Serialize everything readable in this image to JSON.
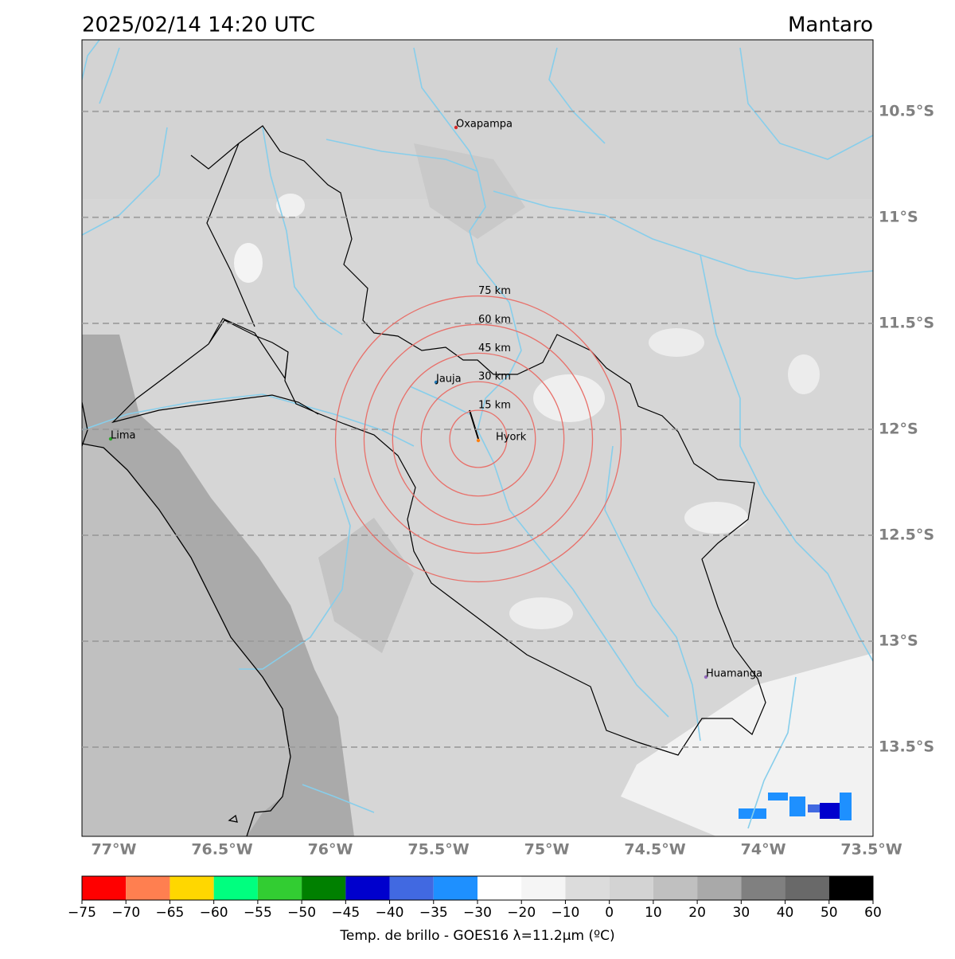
{
  "header": {
    "title": "2025/02/14 14:20 UTC",
    "location": "Mantaro"
  },
  "map": {
    "xlim": [
      -77.147,
      -73.493
    ],
    "ylim": [
      -13.921,
      -10.162
    ],
    "xticks": [
      {
        "value": -77,
        "label": "77°W"
      },
      {
        "value": -76.5,
        "label": "76.5°W"
      },
      {
        "value": -76,
        "label": "76°W"
      },
      {
        "value": -75.5,
        "label": "75.5°W"
      },
      {
        "value": -75,
        "label": "75°W"
      },
      {
        "value": -74.5,
        "label": "74.5°W"
      },
      {
        "value": -74,
        "label": "74°W"
      },
      {
        "value": -73.5,
        "label": "73.5°W"
      }
    ],
    "yticks": [
      {
        "value": -10.5,
        "label": "10.5°S"
      },
      {
        "value": -11,
        "label": "11°S"
      },
      {
        "value": -11.5,
        "label": "11.5°S"
      },
      {
        "value": -12,
        "label": "12°S"
      },
      {
        "value": -12.5,
        "label": "12.5°S"
      },
      {
        "value": -13,
        "label": "13°S"
      },
      {
        "value": -13.5,
        "label": "13.5°S"
      }
    ],
    "rings": [
      {
        "value": 15,
        "label": "15 km"
      },
      {
        "value": 30,
        "label": "30 km"
      },
      {
        "value": 45,
        "label": "45 km"
      },
      {
        "value": 60,
        "label": "60 km"
      },
      {
        "value": 75,
        "label": "75 km"
      }
    ],
    "cities": [
      "Oxapampa",
      "Jauja",
      "Hyork",
      "Lima",
      "Huamanga"
    ]
  },
  "colorbar": {
    "ticks": [
      {
        "value": -75,
        "label": "−75"
      },
      {
        "value": -70,
        "label": "−70"
      },
      {
        "value": -65,
        "label": "−65"
      },
      {
        "value": -60,
        "label": "−60"
      },
      {
        "value": -55,
        "label": "−55"
      },
      {
        "value": -50,
        "label": "−50"
      },
      {
        "value": -45,
        "label": "−45"
      },
      {
        "value": -40,
        "label": "−40"
      },
      {
        "value": -35,
        "label": "−35"
      },
      {
        "value": -30,
        "label": "−30"
      },
      {
        "value": -20,
        "label": "−20"
      },
      {
        "value": -10,
        "label": "−10"
      },
      0,
      10,
      20,
      30,
      40,
      50,
      60
    ],
    "colors": [
      "#ff0000",
      "#ff7f50",
      "#ffd700",
      "#00ff7f",
      "#32cd32",
      "#008000",
      "#0000cd",
      "#4169e1",
      "#1e90ff",
      "#ffffff",
      "#f5f5f5",
      "#dcdcdc",
      "#d3d3d3",
      "#c0c0c0",
      "#a9a9a9",
      "#808080",
      "#696969",
      "#000000"
    ],
    "label": "Temp. de brillo - GOES16 λ=11.2μm (ºC)"
  }
}
